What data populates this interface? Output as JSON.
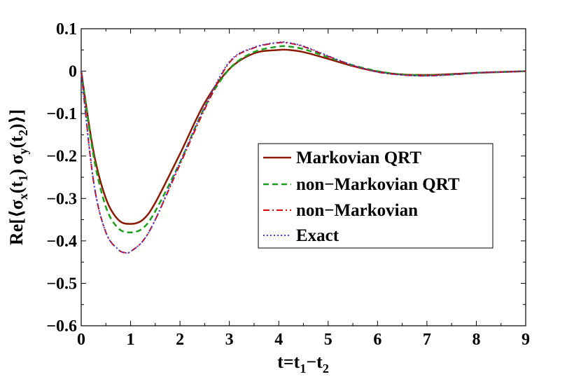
{
  "chart_data": {
    "type": "line",
    "title": "",
    "xlabel": "t=t_1−t_2",
    "xlabel_parts": {
      "base": "t=t",
      "sub1": "1",
      "mid": "−t",
      "sub2": "2"
    },
    "ylabel": "Re[⟨σ_x(t_1) σ_y(t_2)⟩]",
    "ylabel_parts": {
      "p1": "Re[⟨σ",
      "s1": "x",
      "p2": "(t",
      "s2": "1",
      "p3": ") σ",
      "s3": "y",
      "p4": "(t",
      "s4": "2",
      "p5": ")⟩]"
    },
    "xlim": [
      0,
      9
    ],
    "ylim": [
      -0.6,
      0.1
    ],
    "xticks": [
      0,
      1,
      2,
      3,
      4,
      5,
      6,
      7,
      8,
      9
    ],
    "xtick_labels": [
      "0",
      "1",
      "2",
      "3",
      "4",
      "5",
      "6",
      "7",
      "8",
      "9"
    ],
    "yticks": [
      0.1,
      0,
      -0.1,
      -0.2,
      -0.3,
      -0.4,
      -0.5,
      -0.6
    ],
    "ytick_labels": [
      "0.1",
      "0",
      "−0.1",
      "−0.2",
      "−0.3",
      "−0.4",
      "−0.5",
      "−0.6"
    ],
    "grid": false,
    "legend_position": "center-right",
    "series": [
      {
        "name": "Markovian QRT",
        "color": "#8b1a00",
        "dash": "solid",
        "x": [
          0,
          0.25,
          0.5,
          0.75,
          1.0,
          1.25,
          1.5,
          2.0,
          2.5,
          3.0,
          3.5,
          4.0,
          4.2,
          4.5,
          5.0,
          5.5,
          6.0,
          6.5,
          7.0,
          7.5,
          8.0,
          8.5,
          9.0
        ],
        "y": [
          0,
          -0.19,
          -0.3,
          -0.35,
          -0.36,
          -0.35,
          -0.31,
          -0.195,
          -0.075,
          0.005,
          0.042,
          0.05,
          0.05,
          0.045,
          0.029,
          0.012,
          -0.001,
          -0.008,
          -0.009,
          -0.007,
          -0.004,
          -0.002,
          0
        ]
      },
      {
        "name": "non−Markovian QRT",
        "color": "#1aa01a",
        "dash": "dashed",
        "x": [
          0,
          0.25,
          0.5,
          0.75,
          1.0,
          1.25,
          1.5,
          2.0,
          2.5,
          3.0,
          3.5,
          4.0,
          4.2,
          4.5,
          5.0,
          5.5,
          6.0,
          6.5,
          7.0,
          7.5,
          8.0,
          8.5,
          9.0
        ],
        "y": [
          0,
          -0.2,
          -0.32,
          -0.37,
          -0.38,
          -0.37,
          -0.33,
          -0.215,
          -0.085,
          0.005,
          0.045,
          0.058,
          0.058,
          0.052,
          0.033,
          0.014,
          0.0,
          -0.008,
          -0.01,
          -0.008,
          -0.004,
          -0.002,
          0
        ]
      },
      {
        "name": "non−Markovian",
        "color": "#e00000",
        "dash": "dashdot",
        "x": [
          0,
          0.25,
          0.5,
          0.75,
          0.9,
          1.0,
          1.25,
          1.5,
          2.0,
          2.5,
          3.0,
          3.5,
          4.0,
          4.2,
          4.5,
          5.0,
          5.5,
          6.0,
          6.5,
          7.0,
          7.5,
          8.0,
          8.5,
          9.0
        ],
        "y": [
          0,
          -0.26,
          -0.38,
          -0.42,
          -0.428,
          -0.425,
          -0.4,
          -0.35,
          -0.22,
          -0.09,
          0.02,
          0.055,
          0.067,
          0.066,
          0.058,
          0.035,
          0.013,
          -0.002,
          -0.009,
          -0.011,
          -0.008,
          -0.004,
          -0.002,
          0
        ]
      },
      {
        "name": "Exact",
        "color": "#4040e0",
        "dash": "dotted",
        "x": [
          0,
          0.25,
          0.5,
          0.75,
          0.9,
          1.0,
          1.25,
          1.5,
          2.0,
          2.5,
          3.0,
          3.5,
          4.0,
          4.2,
          4.5,
          5.0,
          5.5,
          6.0,
          6.5,
          7.0,
          7.5,
          8.0,
          8.5,
          9.0
        ],
        "y": [
          0,
          -0.26,
          -0.38,
          -0.42,
          -0.428,
          -0.425,
          -0.4,
          -0.35,
          -0.215,
          -0.085,
          0.022,
          0.056,
          0.068,
          0.067,
          0.059,
          0.036,
          0.014,
          -0.002,
          -0.009,
          -0.011,
          -0.008,
          -0.004,
          -0.002,
          0
        ]
      }
    ]
  }
}
